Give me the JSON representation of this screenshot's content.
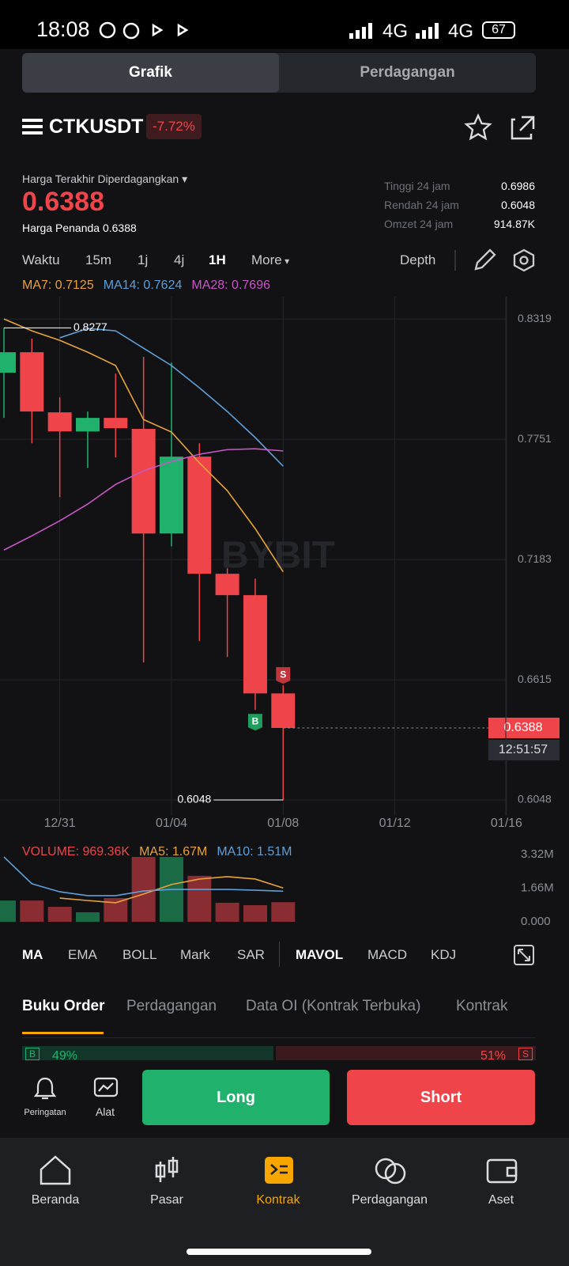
{
  "status_bar": {
    "time": "18:08",
    "network_1": "4G",
    "network_2": "4G",
    "battery": "67"
  },
  "tabs": [
    "Grafik",
    "Perdagangan"
  ],
  "header": {
    "symbol": "CTKUSDT",
    "change": "-7.72%"
  },
  "price": {
    "label": "Harga Terakhir Diperdagangkan",
    "value": "0.6388",
    "mark_label": "Harga Penanda",
    "mark_value": "0.6388"
  },
  "stats": [
    [
      "Tinggi 24 jam",
      "0.6986"
    ],
    [
      "Rendah 24 jam",
      "0.6048"
    ],
    [
      "Omzet 24 jam",
      "914.87K"
    ]
  ],
  "timeframes": [
    "Waktu",
    "15m",
    "1j",
    "4j",
    "1H",
    "More"
  ],
  "depth": "Depth",
  "watermark": "BYBIT",
  "chart_data": [
    {
      "type": "candlestick",
      "categories": [
        null,
        null,
        "12/31",
        null,
        null,
        null,
        "01/04",
        null,
        null,
        null,
        "01/08",
        null,
        null,
        null,
        "01/12",
        null,
        null,
        null,
        "01/16"
      ],
      "open": [
        0.8065,
        0.8162,
        0.7878,
        0.7788,
        0.7852,
        0.78,
        0.7306,
        0.7669,
        0.7116,
        0.7015,
        0.6551,
        null,
        null,
        null,
        null,
        null,
        null,
        null,
        null
      ],
      "high": [
        0.8277,
        0.8226,
        0.7949,
        0.7882,
        0.8061,
        0.814,
        0.8113,
        0.7732,
        0.7142,
        0.7093,
        0.6589,
        null,
        null,
        null,
        null,
        null,
        null,
        null,
        null
      ],
      "low": [
        0.7852,
        0.7732,
        0.7478,
        0.7616,
        0.7665,
        0.6697,
        0.7246,
        0.6798,
        0.6723,
        0.6473,
        0.6048,
        null,
        null,
        null,
        null,
        null,
        null,
        null,
        null
      ],
      "close": [
        0.8162,
        0.7882,
        0.7788,
        0.7852,
        0.7803,
        0.7306,
        0.7669,
        0.7116,
        0.7015,
        0.6551,
        0.6388,
        null,
        null,
        null,
        null,
        null,
        null,
        null,
        null
      ],
      "up_color": "#20b26c",
      "down_color": "#ef454a",
      "series": [
        {
          "name": "MA7: 0.7125",
          "color": "#e6a23c",
          "values": [
            0.8319,
            0.8263,
            0.8218,
            0.8162,
            0.8099,
            0.7844,
            0.7785,
            0.7639,
            0.7508,
            0.7329,
            0.7125,
            null,
            null,
            null,
            null,
            null,
            null,
            null,
            null
          ]
        },
        {
          "name": "MA14: 0.7624",
          "color": "#5e9fd8",
          "values": [
            null,
            null,
            0.823,
            0.8274,
            0.8263,
            0.8181,
            0.8099,
            0.7994,
            0.7882,
            0.7759,
            0.7624,
            null,
            null,
            null,
            null,
            null,
            null,
            null,
            null
          ]
        },
        {
          "name": "MA28: 0.7696",
          "color": "#c857c6",
          "values": [
            0.7228,
            0.7295,
            0.7366,
            0.7445,
            0.7538,
            0.7602,
            0.7646,
            0.768,
            0.7702,
            0.7706,
            0.7696,
            null,
            null,
            null,
            null,
            null,
            null,
            null,
            null
          ]
        }
      ],
      "signals": [
        null,
        null,
        null,
        null,
        null,
        null,
        null,
        null,
        null,
        {
          "label": "B",
          "color": "#1f9d5c",
          "position": "below"
        },
        {
          "label": "S",
          "color": "#c0363c",
          "position": "above"
        },
        null,
        null,
        null,
        null,
        null,
        null,
        null,
        null
      ],
      "countdown": "12:51:57",
      "ylim": [
        0.5977,
        0.8424
      ],
      "yticks": [
        0.8319,
        0.7751,
        0.7183,
        0.6615,
        0.6048
      ],
      "grid": true
    },
    {
      "type": "bar",
      "categories": [
        null,
        null,
        null,
        null,
        null,
        null,
        null,
        null,
        null,
        null,
        null,
        null,
        null,
        null,
        null,
        null,
        null,
        null,
        null
      ],
      "series": [
        {
          "name": "VOLUME: 969.36K",
          "color": "#ef454a",
          "values": [
            1.05,
            1.05,
            0.74,
            0.47,
            1.17,
            3.2,
            3.2,
            2.27,
            0.94,
            0.82,
            0.96936,
            null,
            null,
            null,
            null,
            null,
            null,
            null,
            null
          ]
        },
        {
          "name": "MA5: 1.67M",
          "color": "#e6a23c",
          "type": "line",
          "values": [
            null,
            null,
            1.17,
            1.05,
            0.94,
            1.37,
            1.84,
            2.11,
            2.23,
            2.11,
            1.67,
            null,
            null,
            null,
            null,
            null,
            null,
            null,
            null
          ]
        },
        {
          "name": "MA10: 1.51M",
          "color": "#5e9fd8",
          "type": "line",
          "values": [
            3.2,
            1.88,
            1.48,
            1.29,
            1.29,
            1.52,
            1.6,
            1.6,
            1.6,
            1.56,
            1.51,
            null,
            null,
            null,
            null,
            null,
            null,
            null,
            null
          ]
        }
      ],
      "up_color": "#1a6b45",
      "down_color": "#8a2d33",
      "ylim": [
        0,
        3.71
      ],
      "yticks": [
        {
          "value": 3.32,
          "label": "3.32M"
        },
        {
          "value": 1.66,
          "label": "1.66M"
        },
        {
          "value": 0,
          "label": "0.000"
        }
      ]
    }
  ],
  "indicators": [
    "MA",
    "EMA",
    "BOLL",
    "Mark",
    "SAR",
    "MAVOL",
    "MACD",
    "KDJ"
  ],
  "sections": [
    "Buku Order",
    "Perdagangan",
    "Data OI (Kontrak Terbuka)",
    "Kontrak"
  ],
  "order_ratio": {
    "buy_tag": "B",
    "buy": "49%",
    "sell": "51%",
    "sell_tag": "S"
  },
  "actions": {
    "alert": "Peringatan",
    "tools": "Alat",
    "long": "Long",
    "short": "Short"
  },
  "nav": [
    "Beranda",
    "Pasar",
    "Kontrak",
    "Perdagangan",
    "Aset"
  ]
}
